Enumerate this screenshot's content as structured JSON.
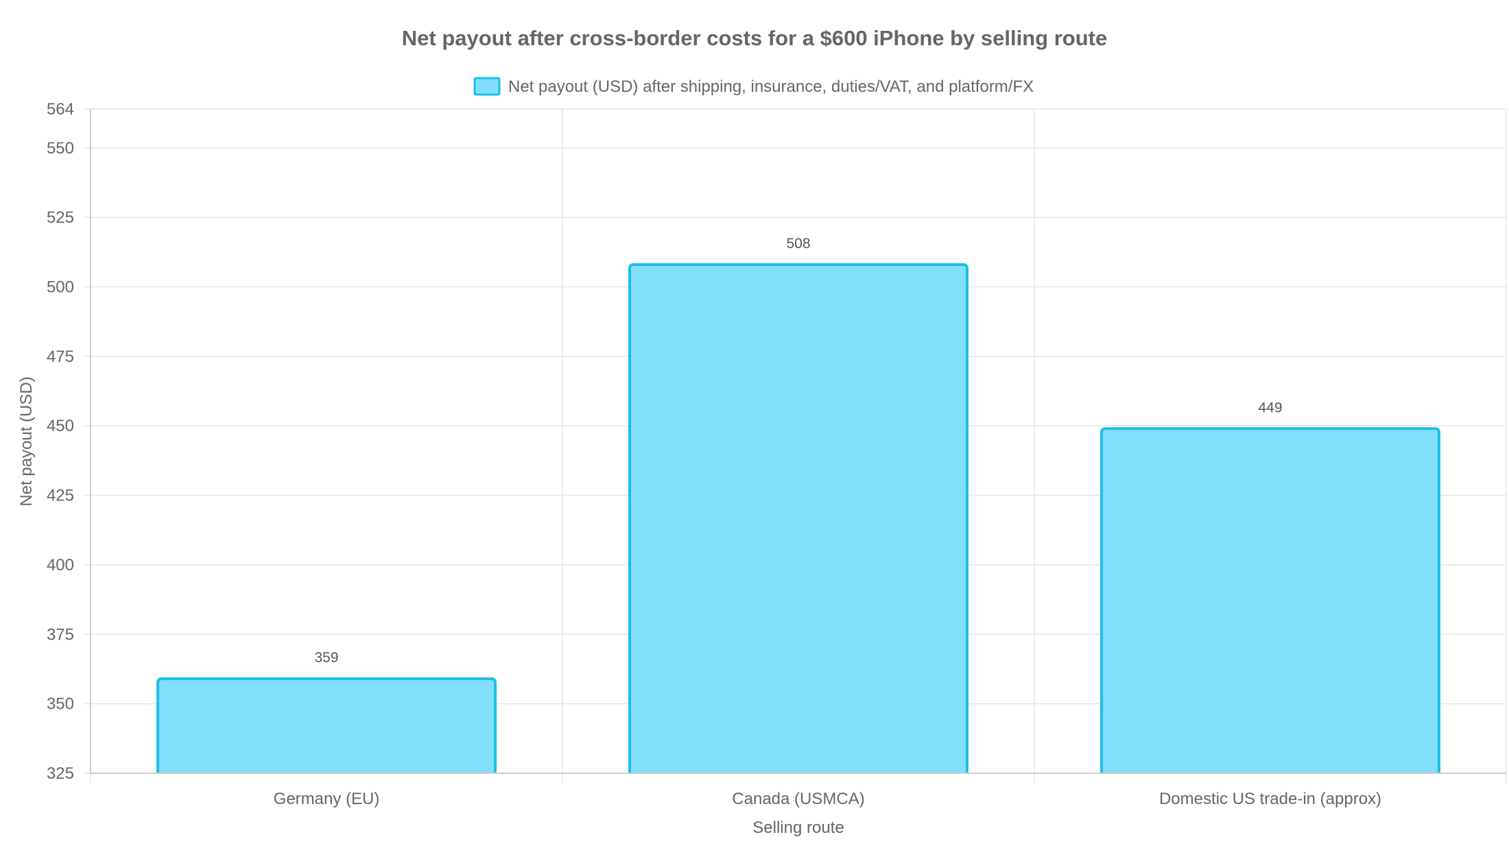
{
  "chart_data": {
    "type": "bar",
    "title": "Net payout after cross-border costs for a $600 iPhone by selling route",
    "xlabel": "Selling route",
    "ylabel": "Net payout (USD)",
    "categories": [
      "Germany (EU)",
      "Canada (USMCA)",
      "Domestic US trade-in (approx)"
    ],
    "series": [
      {
        "name": "Net payout (USD) after shipping, insurance, duties/VAT, and platform/FX",
        "values": [
          359,
          508,
          449
        ]
      }
    ],
    "data_labels": [
      "359",
      "508",
      "449"
    ],
    "ylim": [
      325,
      564
    ],
    "yticks": [
      325,
      350,
      375,
      400,
      425,
      450,
      475,
      500,
      525,
      550,
      564
    ],
    "grid": true,
    "legend_position": "top-center",
    "colors": {
      "bar_fill": "#7fdefc",
      "bar_stroke": "#1bbfea",
      "text": "#666666",
      "grid": "#e5e5e5"
    }
  }
}
